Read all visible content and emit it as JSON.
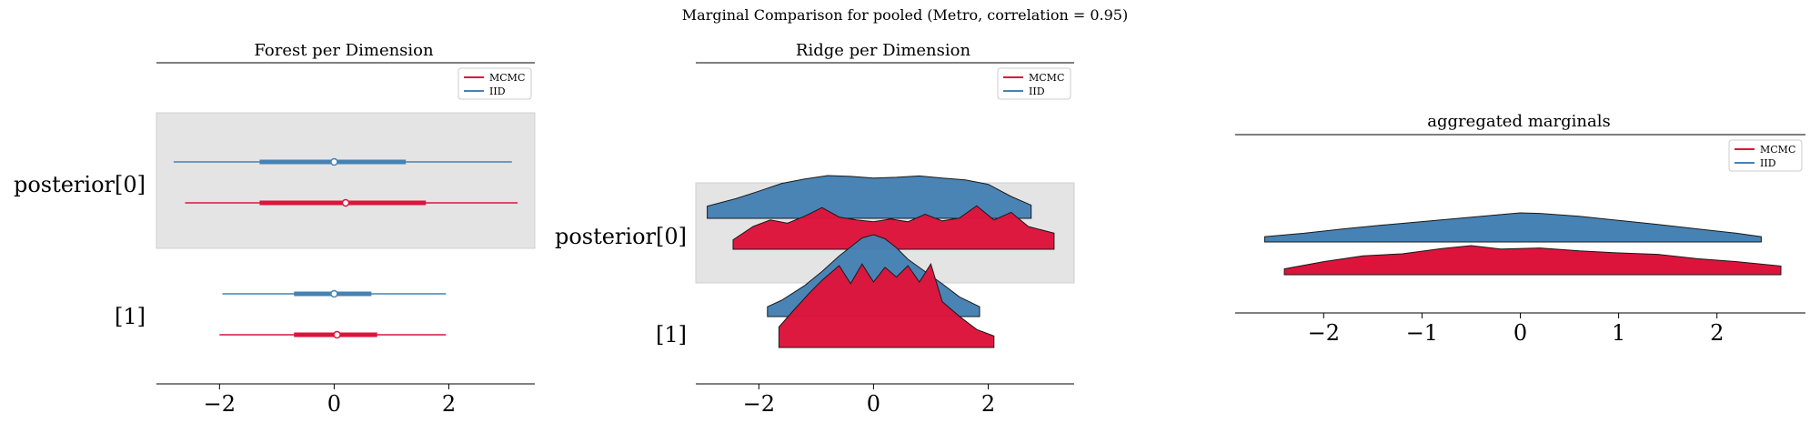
{
  "figure": {
    "suptitle": "Marginal Comparison for pooled (Metro, correlation = 0.95)"
  },
  "colors": {
    "mcmc": "#dc143c",
    "iid": "#4682b4",
    "band": "#e4e4e4",
    "axis": "#000000"
  },
  "chart_data": [
    {
      "type": "forest",
      "title": "Forest per Dimension",
      "xlim": [
        -3.1,
        3.5
      ],
      "xticks": [
        -2,
        0,
        2
      ],
      "xtick_labels": [
        "−2",
        "0",
        "2"
      ],
      "row_labels": [
        "posterior[0]",
        "[1]"
      ],
      "legend": {
        "placement": "top-right",
        "entries": [
          "MCMC",
          "IID"
        ]
      },
      "series": [
        {
          "name": "IID",
          "rows": [
            {
              "label": "posterior[0]",
              "hdi94": [
                -2.8,
                3.1
              ],
              "iqr": [
                -1.3,
                1.25
              ],
              "median": 0.0
            },
            {
              "label": "[1]",
              "hdi94": [
                -1.95,
                1.95
              ],
              "iqr": [
                -0.7,
                0.65
              ],
              "median": 0.0
            }
          ]
        },
        {
          "name": "MCMC",
          "rows": [
            {
              "label": "posterior[0]",
              "hdi94": [
                -2.6,
                3.2
              ],
              "iqr": [
                -1.3,
                1.6
              ],
              "median": 0.2
            },
            {
              "label": "[1]",
              "hdi94": [
                -2.0,
                1.95
              ],
              "iqr": [
                -0.7,
                0.75
              ],
              "median": 0.05
            }
          ]
        }
      ]
    },
    {
      "type": "ridge",
      "title": "Ridge per Dimension",
      "xlim": [
        -3.1,
        3.5
      ],
      "xticks": [
        -2,
        0,
        2
      ],
      "xtick_labels": [
        "−2",
        "0",
        "2"
      ],
      "row_labels": [
        "posterior[0]",
        "[1]"
      ],
      "legend": {
        "placement": "top-right",
        "entries": [
          "MCMC",
          "IID"
        ]
      },
      "series": [
        {
          "name": "IID",
          "rows": [
            {
              "label": "posterior[0]",
              "x": [
                -2.9,
                -2.4,
                -2.0,
                -1.6,
                -1.2,
                -0.8,
                -0.4,
                0.0,
                0.4,
                0.8,
                1.2,
                1.6,
                2.0,
                2.4,
                2.75
              ],
              "density": [
                0.28,
                0.45,
                0.62,
                0.8,
                0.9,
                0.98,
                0.96,
                0.92,
                0.94,
                0.97,
                0.92,
                0.88,
                0.78,
                0.5,
                0.3
              ]
            },
            {
              "label": "[1]",
              "x": [
                -1.85,
                -1.6,
                -1.2,
                -0.9,
                -0.6,
                -0.4,
                -0.2,
                0.0,
                0.2,
                0.4,
                0.6,
                0.9,
                1.2,
                1.5,
                1.85
              ],
              "density": [
                0.12,
                0.2,
                0.38,
                0.55,
                0.74,
                0.85,
                0.96,
                1.0,
                0.95,
                0.84,
                0.7,
                0.55,
                0.4,
                0.24,
                0.12
              ]
            }
          ]
        },
        {
          "name": "MCMC",
          "rows": [
            {
              "label": "posterior[0]",
              "x": [
                -2.45,
                -2.1,
                -1.8,
                -1.5,
                -1.2,
                -0.9,
                -0.6,
                -0.3,
                0.0,
                0.3,
                0.6,
                0.9,
                1.2,
                1.5,
                1.8,
                2.1,
                2.4,
                2.7,
                3.15
              ],
              "density": [
                0.2,
                0.48,
                0.62,
                0.55,
                0.7,
                0.88,
                0.68,
                0.62,
                0.58,
                0.64,
                0.58,
                0.74,
                0.6,
                0.66,
                0.92,
                0.62,
                0.78,
                0.48,
                0.34
              ]
            },
            {
              "label": "[1]",
              "x": [
                -1.65,
                -1.4,
                -1.1,
                -0.9,
                -0.6,
                -0.4,
                -0.2,
                0.0,
                0.2,
                0.4,
                0.6,
                0.8,
                1.0,
                1.2,
                1.5,
                1.8,
                2.1
              ],
              "density": [
                0.25,
                0.45,
                0.68,
                0.82,
                1.0,
                0.78,
                1.02,
                0.8,
                0.98,
                0.86,
                1.0,
                0.8,
                1.02,
                0.56,
                0.38,
                0.22,
                0.14
              ]
            }
          ]
        }
      ]
    },
    {
      "type": "area",
      "title": "aggregated marginals",
      "xlim": [
        -2.9,
        2.9
      ],
      "xticks": [
        -2,
        -1,
        0,
        1,
        2
      ],
      "xtick_labels": [
        "−2",
        "−1",
        "0",
        "1",
        "2"
      ],
      "legend": {
        "placement": "top-right",
        "entries": [
          "MCMC",
          "IID"
        ]
      },
      "series": [
        {
          "name": "IID",
          "x": [
            -2.6,
            -2.2,
            -1.8,
            -1.4,
            -1.0,
            -0.6,
            -0.2,
            0.0,
            0.2,
            0.6,
            1.0,
            1.4,
            1.8,
            2.2,
            2.45
          ],
          "density": [
            0.18,
            0.3,
            0.45,
            0.58,
            0.7,
            0.82,
            0.94,
            1.0,
            0.98,
            0.88,
            0.74,
            0.6,
            0.45,
            0.3,
            0.18
          ]
        },
        {
          "name": "MCMC",
          "x": [
            -2.4,
            -2.0,
            -1.6,
            -1.2,
            -0.8,
            -0.5,
            -0.2,
            0.2,
            0.6,
            1.0,
            1.4,
            1.8,
            2.2,
            2.65
          ],
          "density": [
            0.2,
            0.45,
            0.65,
            0.72,
            0.9,
            1.0,
            0.88,
            0.92,
            0.82,
            0.75,
            0.7,
            0.55,
            0.45,
            0.3
          ]
        }
      ]
    }
  ]
}
